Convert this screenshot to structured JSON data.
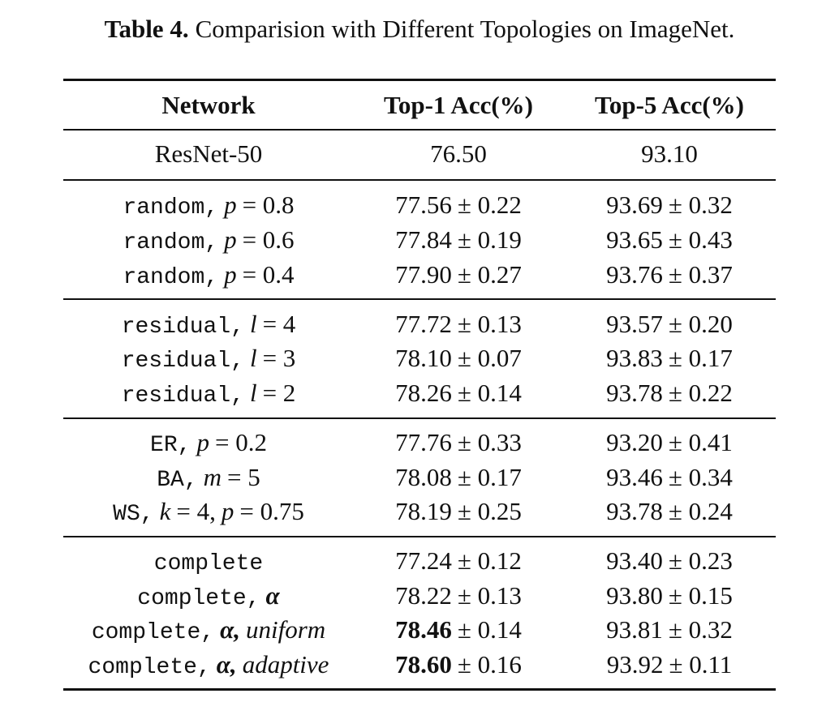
{
  "caption": {
    "label": "Table 4.",
    "text": "Comparision with Different Topologies on ImageNet."
  },
  "table": {
    "header": [
      "Network",
      "Top-1 Acc(%)",
      "Top-5 Acc(%)"
    ],
    "groups": [
      [
        {
          "network": [
            "ResNet-50"
          ],
          "top1": [
            "76.50"
          ],
          "top5": [
            "93.10"
          ]
        }
      ],
      [
        {
          "network": [
            "random,",
            "p",
            "= 0.8"
          ],
          "top1": [
            "77.56",
            "± 0.22"
          ],
          "top5": [
            "93.69",
            "± 0.32"
          ]
        },
        {
          "network": [
            "random,",
            "p",
            "= 0.6"
          ],
          "top1": [
            "77.84",
            "± 0.19"
          ],
          "top5": [
            "93.65",
            "± 0.43"
          ]
        },
        {
          "network": [
            "random,",
            "p",
            "= 0.4"
          ],
          "top1": [
            "77.90",
            "± 0.27"
          ],
          "top5": [
            "93.76",
            "± 0.37"
          ]
        }
      ],
      [
        {
          "network": [
            "residual,",
            "l",
            "= 4"
          ],
          "top1": [
            "77.72",
            "± 0.13"
          ],
          "top5": [
            "93.57",
            "± 0.20"
          ]
        },
        {
          "network": [
            "residual,",
            "l",
            "= 3"
          ],
          "top1": [
            "78.10",
            "± 0.07"
          ],
          "top5": [
            "93.83",
            "± 0.17"
          ]
        },
        {
          "network": [
            "residual,",
            "l",
            "= 2"
          ],
          "top1": [
            "78.26",
            "± 0.14"
          ],
          "top5": [
            "93.78",
            "± 0.22"
          ]
        }
      ],
      [
        {
          "network": [
            "ER,",
            "p",
            "= 0.2"
          ],
          "top1": [
            "77.76",
            "± 0.33"
          ],
          "top5": [
            "93.20",
            "± 0.41"
          ]
        },
        {
          "network": [
            "BA,",
            "m",
            "= 5"
          ],
          "top1": [
            "78.08",
            "± 0.17"
          ],
          "top5": [
            "93.46",
            "± 0.34"
          ]
        },
        {
          "network": [
            "WS,",
            "k",
            "= 4,",
            "p",
            "= 0.75"
          ],
          "top1": [
            "78.19",
            "± 0.25"
          ],
          "top5": [
            "93.78",
            "± 0.24"
          ]
        }
      ],
      [
        {
          "network": [
            "complete"
          ],
          "top1": [
            "77.24",
            "± 0.12"
          ],
          "top5": [
            "93.40",
            "± 0.23"
          ]
        },
        {
          "network": [
            "complete,",
            "α"
          ],
          "top1": [
            "78.22",
            "± 0.13"
          ],
          "top5": [
            "93.80",
            "± 0.15"
          ]
        },
        {
          "network": [
            "complete,",
            "α,",
            "uniform"
          ],
          "top1": [
            "78.46",
            "± 0.14"
          ],
          "top5": [
            "93.81",
            "± 0.32"
          ]
        },
        {
          "network": [
            "complete,",
            "α,",
            "adaptive"
          ],
          "top1": [
            "78.60",
            "± 0.16"
          ],
          "top5": [
            "93.92",
            "± 0.11"
          ]
        }
      ]
    ]
  }
}
